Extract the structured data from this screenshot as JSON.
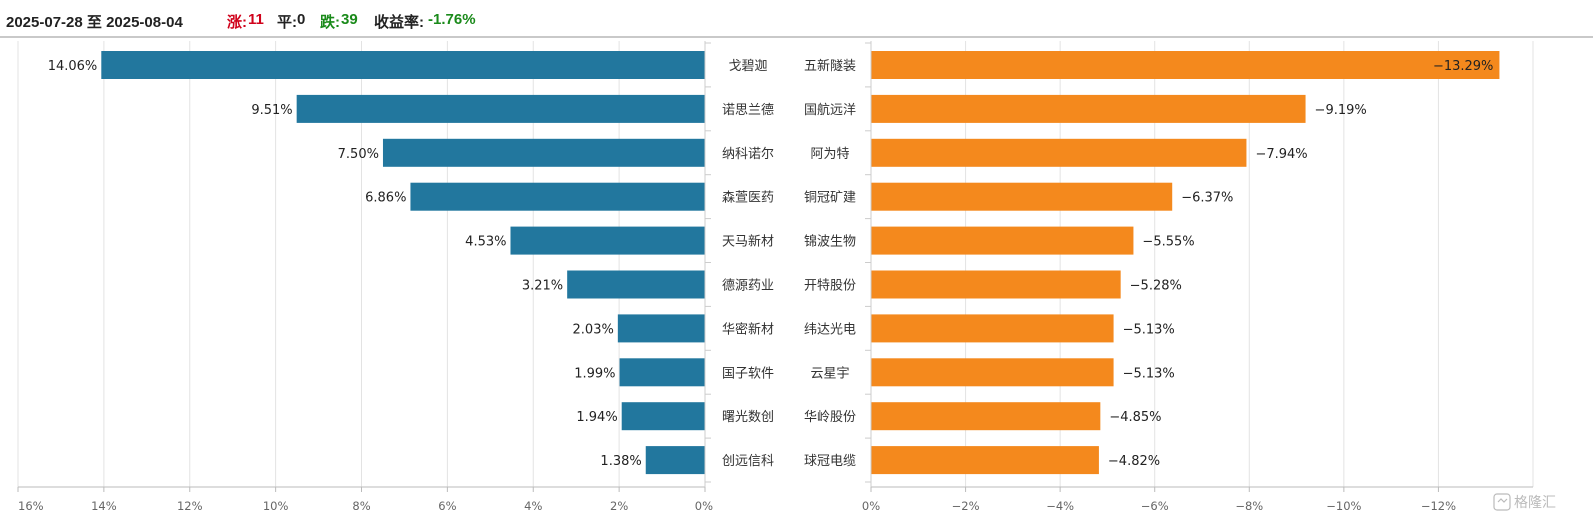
{
  "header": {
    "date_range": "2025-07-28 至 2025-08-04",
    "up_label": "涨:",
    "up_count": "11",
    "flat_label": "平:",
    "flat_count": "0",
    "down_label": "跌:",
    "down_count": "39",
    "return_label": "收益率:",
    "return_value": "-1.76%"
  },
  "watermark": "格隆汇",
  "colors": {
    "gainers_bar": "#22779e",
    "losers_bar": "#f4891d",
    "up_text": "#d0021b",
    "down_text": "#1a8a1a"
  },
  "chart_data": [
    {
      "type": "bar",
      "orientation": "horizontal",
      "x_direction": "reversed",
      "categories": [
        "戈碧迦",
        "诺思兰德",
        "纳科诺尔",
        "森萱医药",
        "天马新材",
        "德源药业",
        "华密新材",
        "国子软件",
        "曙光数创",
        "创远信科"
      ],
      "values": [
        14.06,
        9.51,
        7.5,
        6.86,
        4.53,
        3.21,
        2.03,
        1.99,
        1.94,
        1.38
      ],
      "data_labels": [
        "14.06%",
        "9.51%",
        "7.50%",
        "6.86%",
        "4.53%",
        "3.21%",
        "2.03%",
        "1.99%",
        "1.94%",
        "1.38%"
      ],
      "xlim": [
        0,
        16
      ],
      "x_ticks": [
        16,
        14,
        12,
        10,
        8,
        6,
        4,
        2,
        0
      ],
      "x_tick_labels": [
        "16%",
        "14%",
        "12%",
        "10%",
        "8%",
        "6%",
        "4%",
        "2%",
        "0%"
      ],
      "grid": true
    },
    {
      "type": "bar",
      "orientation": "horizontal",
      "categories": [
        "五新隧装",
        "国航远洋",
        "阿为特",
        "铜冠矿建",
        "锦波生物",
        "开特股份",
        "纬达光电",
        "云星宇",
        "华岭股份",
        "球冠电缆"
      ],
      "values": [
        -13.29,
        -9.19,
        -7.94,
        -6.37,
        -5.55,
        -5.28,
        -5.13,
        -5.13,
        -4.85,
        -4.82
      ],
      "data_labels": [
        "−13.29%",
        "−9.19%",
        "−7.94%",
        "−6.37%",
        "−5.55%",
        "−5.28%",
        "−5.13%",
        "−5.13%",
        "−4.85%",
        "−4.82%"
      ],
      "xlim": [
        0,
        -14
      ],
      "x_ticks": [
        0,
        -2,
        -4,
        -6,
        -8,
        -10,
        -12
      ],
      "x_tick_labels": [
        "0%",
        "−2%",
        "−4%",
        "−6%",
        "−8%",
        "−10%",
        "−12%"
      ],
      "grid": true
    }
  ]
}
